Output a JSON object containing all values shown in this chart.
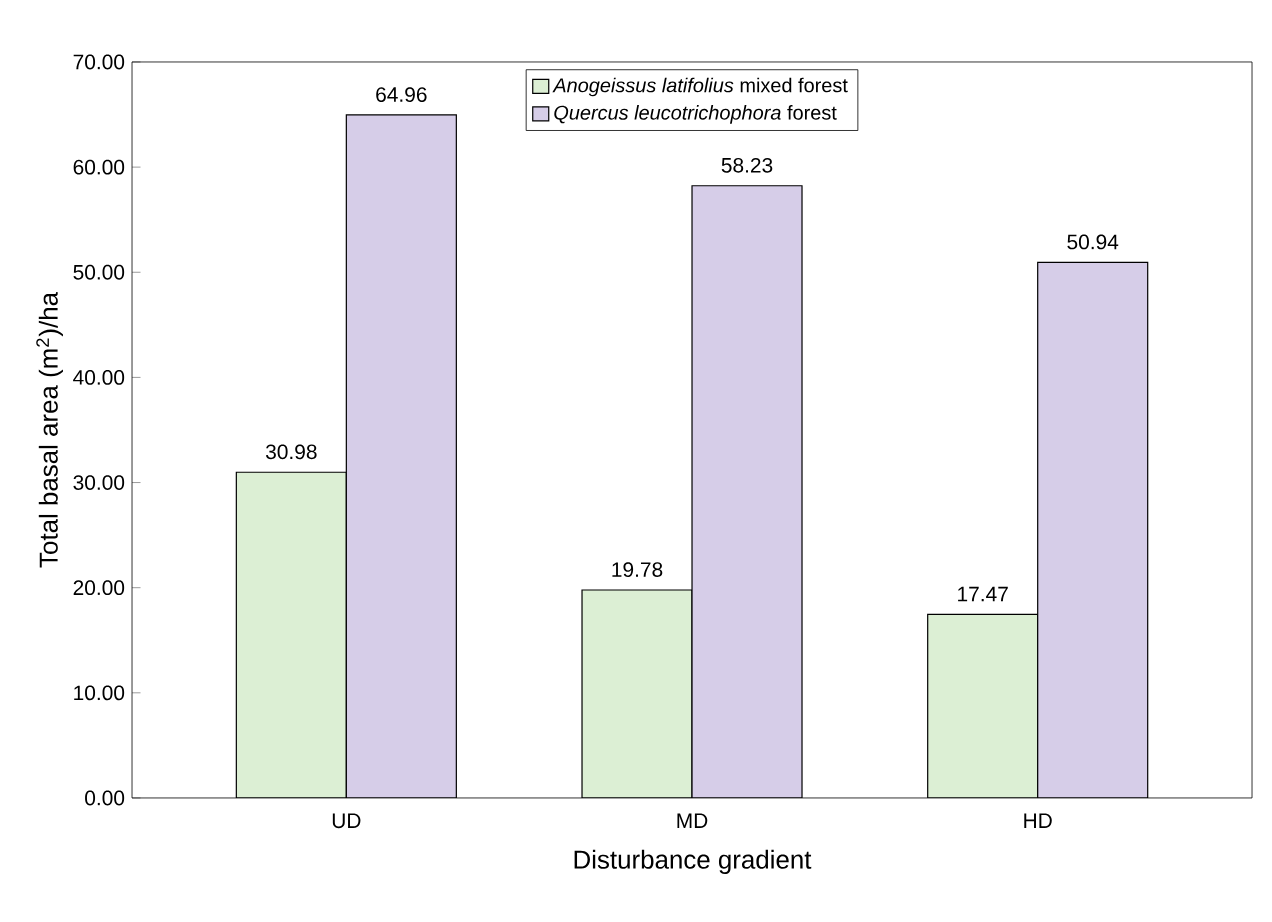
{
  "chart_data": {
    "type": "bar",
    "xlabel": "Disturbance gradient",
    "ylabel": "Total basal area (m$^{2}$)/ha",
    "categories": [
      "UD",
      "MD",
      "HD"
    ],
    "series": [
      {
        "name": "*Anogeissus latifolius* mixed forest",
        "color": "#dcefd4",
        "values": [
          30.98,
          19.78,
          17.47
        ]
      },
      {
        "name": "*Quercus leucotrichophora* forest",
        "color": "#d6cde8",
        "values": [
          64.96,
          58.23,
          50.94
        ]
      }
    ],
    "ylim": [
      0,
      70
    ],
    "yticks": [
      {
        "value": 0,
        "label": "0.00"
      },
      {
        "value": 10,
        "label": "10.00"
      },
      {
        "value": 20,
        "label": "20.00"
      },
      {
        "value": 30,
        "label": "30.00"
      },
      {
        "value": 40,
        "label": "40.00"
      },
      {
        "value": 50,
        "label": "50.00"
      },
      {
        "value": 60,
        "label": "60.00"
      },
      {
        "value": 70,
        "label": "70.00"
      }
    ],
    "data_labels": true,
    "legend": "top",
    "grid": false
  }
}
